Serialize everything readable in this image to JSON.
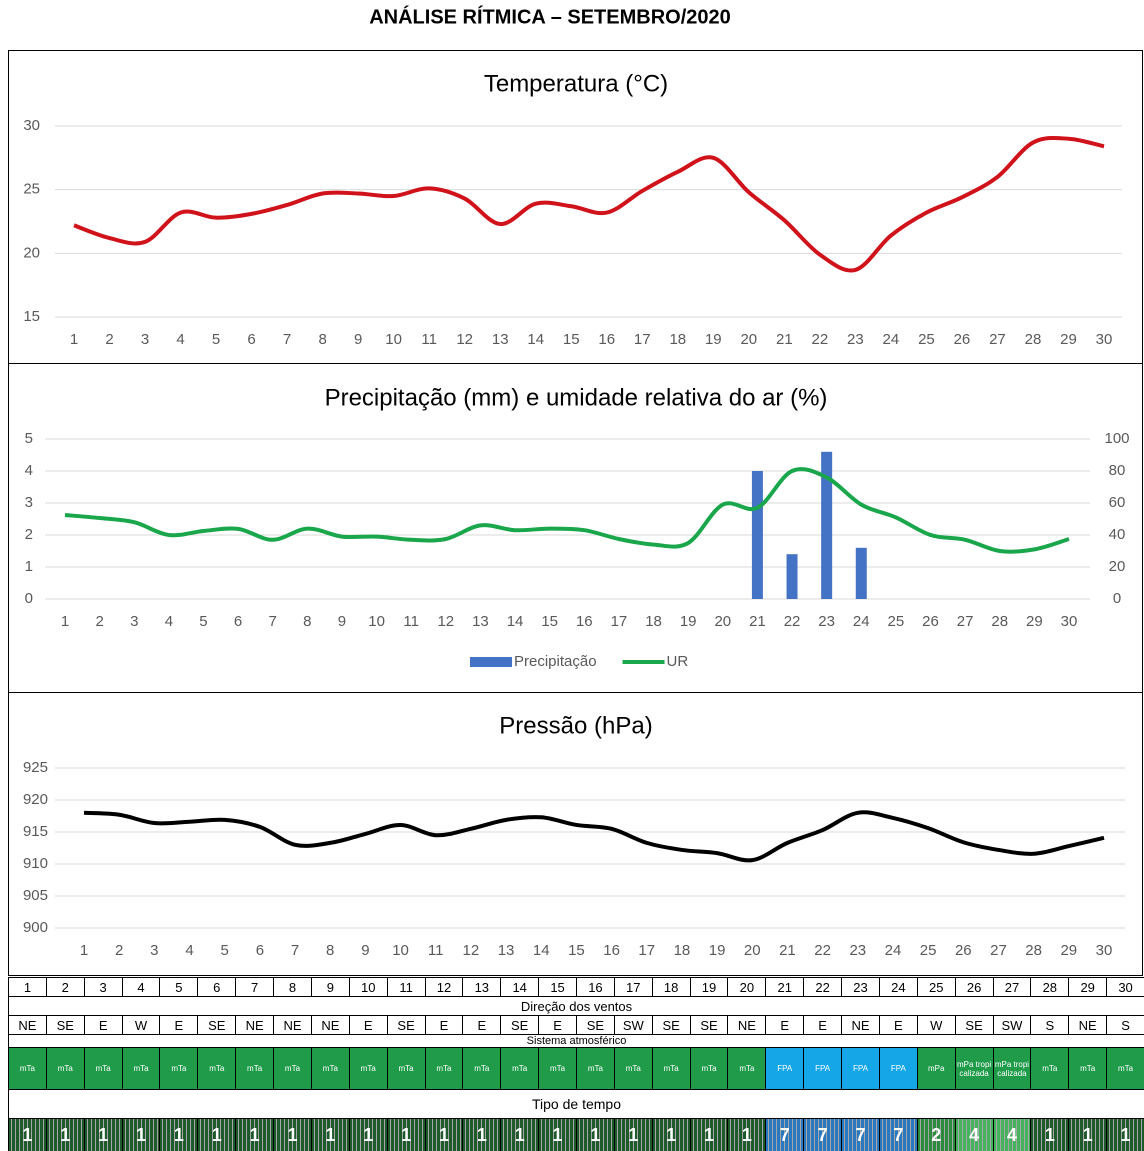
{
  "title": "ANÁLISE RÍTMICA – SETEMBRO/2020",
  "chart_data": [
    {
      "type": "line",
      "title": "Temperatura (°C)",
      "x": [
        1,
        2,
        3,
        4,
        5,
        6,
        7,
        8,
        9,
        10,
        11,
        12,
        13,
        14,
        15,
        16,
        17,
        18,
        19,
        20,
        21,
        22,
        23,
        24,
        25,
        26,
        27,
        28,
        29,
        30
      ],
      "series": [
        {
          "name": "Temperatura",
          "color": "#d0121b",
          "type": "line",
          "values": [
            22.2,
            21.2,
            20.9,
            23.2,
            22.8,
            23.1,
            23.8,
            24.7,
            24.7,
            24.5,
            25.1,
            24.3,
            22.3,
            23.9,
            23.7,
            23.2,
            24.9,
            26.4,
            27.5,
            24.8,
            22.6,
            19.9,
            18.7,
            21.4,
            23.2,
            24.4,
            26.0,
            28.7,
            29.0,
            28.4
          ]
        }
      ],
      "ylim": [
        15,
        30
      ],
      "yticks": [
        15,
        20,
        25,
        30
      ],
      "grid": true
    },
    {
      "type": "bar",
      "title": "Precipitação (mm) e umidade relativa do ar (%)",
      "x": [
        1,
        2,
        3,
        4,
        5,
        6,
        7,
        8,
        9,
        10,
        11,
        12,
        13,
        14,
        15,
        16,
        17,
        18,
        19,
        20,
        21,
        22,
        23,
        24,
        25,
        26,
        27,
        28,
        29,
        30
      ],
      "series": [
        {
          "name": "Precipitação",
          "color": "#4472c4",
          "type": "bar",
          "values": [
            0,
            0,
            0,
            0,
            0,
            0,
            0,
            0,
            0,
            0,
            0,
            0,
            0,
            0,
            0,
            0,
            0,
            0,
            0,
            0,
            4.0,
            1.4,
            4.6,
            1.6,
            0,
            0,
            0,
            0,
            0,
            0
          ]
        },
        {
          "name": "UR",
          "color": "#1aa64a",
          "type": "line",
          "axis": "y2",
          "values": [
            52.5,
            50.6,
            48,
            40,
            42.5,
            43.8,
            37,
            44,
            39,
            39,
            37,
            37.5,
            46,
            43,
            44,
            43,
            37.5,
            34,
            35,
            59,
            57,
            80,
            76,
            59,
            51,
            40,
            37,
            30,
            31,
            37.5
          ]
        }
      ],
      "ylim": [
        0,
        5
      ],
      "yticks": [
        0,
        1,
        2,
        3,
        4,
        5
      ],
      "y2lim": [
        0,
        100
      ],
      "y2ticks": [
        0,
        20,
        40,
        60,
        80,
        100
      ],
      "grid": true,
      "legend": "bottom"
    },
    {
      "type": "line",
      "title": "Pressão (hPa)",
      "x": [
        1,
        2,
        3,
        4,
        5,
        6,
        7,
        8,
        9,
        10,
        11,
        12,
        13,
        14,
        15,
        16,
        17,
        18,
        19,
        20,
        21,
        22,
        23,
        24,
        25,
        26,
        27,
        28,
        29,
        30
      ],
      "series": [
        {
          "name": "Pressão",
          "color": "#000000",
          "type": "line",
          "values": [
            918.0,
            917.7,
            916.4,
            916.6,
            916.9,
            915.8,
            913.0,
            913.3,
            914.7,
            916.1,
            914.5,
            915.5,
            916.9,
            917.3,
            916.1,
            915.5,
            913.3,
            912.2,
            911.7,
            910.6,
            913.3,
            915.3,
            918.0,
            917.2,
            915.6,
            913.4,
            912.2,
            911.6,
            912.8,
            914.1
          ]
        }
      ],
      "ylim": [
        900,
        925
      ],
      "yticks": [
        900,
        905,
        910,
        915,
        920,
        925
      ],
      "grid": true
    }
  ],
  "table": {
    "days": [
      1,
      2,
      3,
      4,
      5,
      6,
      7,
      8,
      9,
      10,
      11,
      12,
      13,
      14,
      15,
      16,
      17,
      18,
      19,
      20,
      21,
      22,
      23,
      24,
      25,
      26,
      27,
      28,
      29,
      30
    ],
    "wind_label": "Direção dos ventos",
    "winds": [
      "NE",
      "SE",
      "E",
      "W",
      "E",
      "SE",
      "NE",
      "NE",
      "NE",
      "E",
      "SE",
      "E",
      "E",
      "SE",
      "E",
      "SE",
      "SW",
      "SE",
      "SE",
      "NE",
      "E",
      "E",
      "NE",
      "E",
      "W",
      "SE",
      "SW",
      "S",
      "NE",
      "S"
    ],
    "system_label": "Sistema atmosférico",
    "systems": [
      "mTa",
      "mTa",
      "mTa",
      "mTa",
      "mTa",
      "mTa",
      "mTa",
      "mTa",
      "mTa",
      "mTa",
      "mTa",
      "mTa",
      "mTa",
      "mTa",
      "mTa",
      "mTa",
      "mTa",
      "mTa",
      "mTa",
      "mTa",
      "FPA",
      "FPA",
      "FPA",
      "FPA",
      "mPa",
      "mPa tropicalizada",
      "mPa tropicalizada",
      "mTa",
      "mTa",
      "mTa"
    ],
    "system_colors": {
      "mTa": "#1f9b4a",
      "FPA": "#14a6e6",
      "mPa": "#1f9b4a",
      "mPa tropicalizada": "#1f9b4a"
    },
    "weather_label": "Tipo de tempo",
    "weather_types": [
      1,
      1,
      1,
      1,
      1,
      1,
      1,
      1,
      1,
      1,
      1,
      1,
      1,
      1,
      1,
      1,
      1,
      1,
      1,
      1,
      7,
      7,
      7,
      7,
      2,
      4,
      4,
      1,
      1,
      1
    ],
    "weather_colors": {
      "1": "#1f5a2c",
      "7": "#2a78c0",
      "2": "#2b8a3c",
      "4": "#45b25e"
    }
  }
}
